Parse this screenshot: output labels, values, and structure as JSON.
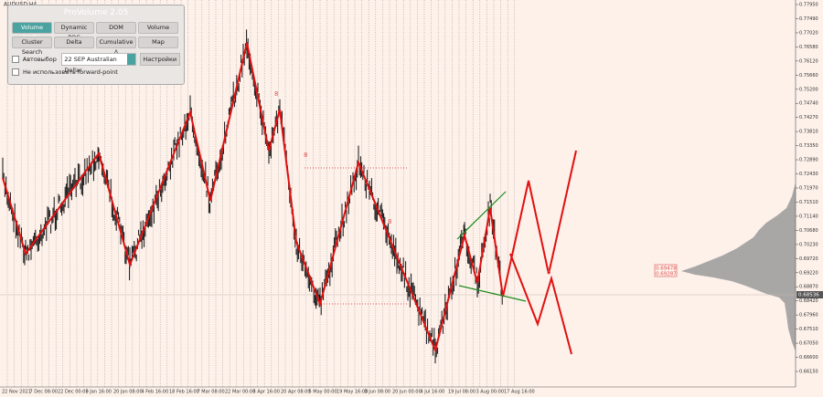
{
  "window": {
    "symbol": "AUDUSD,H4"
  },
  "panel": {
    "title": "ProVolume 2.05",
    "buttons": [
      "Volume Profile",
      "Dynamic POC",
      "DOM",
      "Volume",
      "Cluster Search",
      "Delta",
      "Cumulative Δ",
      "Map"
    ],
    "auto_select": "Автовыбор",
    "instrument": "22 SEP Australian Dollar",
    "settings": "Настройки",
    "forward_point": "Не использовать forward-point"
  },
  "price_axis": [
    "0.77950",
    "0.77490",
    "0.77020",
    "0.76580",
    "0.76120",
    "0.75660",
    "0.75200",
    "0.74740",
    "0.74270",
    "0.73810",
    "0.73350",
    "0.72890",
    "0.72430",
    "0.71970",
    "0.71510",
    "0.71140",
    "0.70680",
    "0.70230",
    "0.69720",
    "0.69220",
    "0.68870",
    "0.68420",
    "0.67960",
    "0.67510",
    "0.67050",
    "0.66600",
    "0.66150"
  ],
  "current_price": "0.68536",
  "level_labels": [
    "0.69478",
    "0.69287"
  ],
  "marks": [
    "8",
    "8",
    "8",
    "8"
  ],
  "time_axis": [
    "22 Nov 2021",
    "7 Dec 08:00",
    "22 Dec 00:00",
    "5 Jan 16:00",
    "20 Jan 08:00",
    "4 Feb 16:00",
    "18 Feb 16:00",
    "7 Mar 08:00",
    "22 Mar 00:00",
    "5 Apr 16:00",
    "20 Apr 08:00",
    "5 May 00:00",
    "19 May 16:00",
    "3 Jun 08:00",
    "20 Jun 00:00",
    "4 Jul 16:00",
    "19 Jul 08:00",
    "3 Aug 00:00",
    "17 Aug 16:00"
  ]
}
